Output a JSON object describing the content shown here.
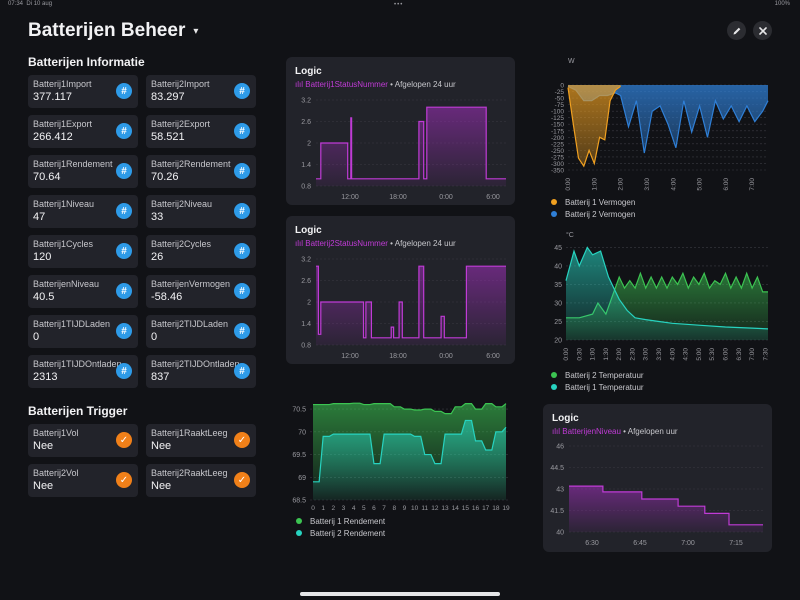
{
  "status_bar": {
    "time": "07:34",
    "date": "Di 10 aug",
    "dots": "•••",
    "battery": "100%"
  },
  "header": {
    "title": "Batterijen Beheer",
    "caret": "▾",
    "edit_icon": "pencil-icon",
    "close_icon": "close-icon"
  },
  "sections": {
    "info": "Batterijen Informatie",
    "trigger": "Batterijen Trigger"
  },
  "info_cards": [
    {
      "label": "Batterij1Import",
      "value": "377.117"
    },
    {
      "label": "Batterij2Import",
      "value": "83.297"
    },
    {
      "label": "Batterij1Export",
      "value": "266.412"
    },
    {
      "label": "Batterij2Export",
      "value": "58.521"
    },
    {
      "label": "Batterij1Rendement",
      "value": "70.64"
    },
    {
      "label": "Batterij2Rendement",
      "value": "70.26"
    },
    {
      "label": "Batterij1Niveau",
      "value": "47"
    },
    {
      "label": "Batterij2Niveau",
      "value": "33"
    },
    {
      "label": "Batterij1Cycles",
      "value": "120"
    },
    {
      "label": "Batterij2Cycles",
      "value": "26"
    },
    {
      "label": "BatterijenNiveau",
      "value": "40.5"
    },
    {
      "label": "BatterijenVermogen",
      "value": "-58.46"
    },
    {
      "label": "Batterij1TIJDLaden",
      "value": "0"
    },
    {
      "label": "Batterij2TIJDLaden",
      "value": "0"
    },
    {
      "label": "Batterij1TIJDOntladen",
      "value": "2313"
    },
    {
      "label": "Batterij2TIJDOntladen",
      "value": "837"
    }
  ],
  "hash_glyph": "#",
  "check_glyph": "✓",
  "trigger_cards": [
    {
      "label": "Batterij1Vol",
      "value": "Nee"
    },
    {
      "label": "Batterij1RaaktLeeg",
      "value": "Nee"
    },
    {
      "label": "Batterij2Vol",
      "value": "Nee"
    },
    {
      "label": "Batterij2RaaktLeeg",
      "value": "Nee"
    }
  ],
  "logic_panels": [
    {
      "title": "Logic",
      "entity": "Batterij1StatusNummer",
      "period": " • Afgelopen 24 uur",
      "signal_icon": "signal-bars-icon"
    },
    {
      "title": "Logic",
      "entity": "Batterij2StatusNummer",
      "period": " • Afgelopen 24 uur",
      "signal_icon": "signal-bars-icon"
    },
    {
      "title": "Logic",
      "entity": "BatterijenNiveau",
      "period": " • Afgelopen uur",
      "signal_icon": "signal-bars-icon"
    }
  ],
  "colors": {
    "purple": "#a12fbd",
    "green": "#3cc452",
    "teal": "#27d3c0",
    "orange": "#f0a020",
    "blue": "#2f7fd6",
    "accent_blue": "#2e9be8",
    "accent_orange": "#f08019"
  },
  "chart_data": [
    {
      "id": "status1",
      "type": "line",
      "ylim": [
        0.8,
        3.2
      ],
      "yticks": [
        "3.2",
        "2.6",
        "2",
        "1.4",
        "0.8"
      ],
      "xticks": [
        "12:00",
        "18:00",
        "0:00",
        "6:00"
      ],
      "series": [
        {
          "x_hours": [
            0,
            0.6,
            0.6,
            4.0,
            4.0,
            4.4,
            4.4,
            4.5,
            4.5,
            13.0,
            13.0,
            13.6,
            13.6,
            14.0,
            14.0,
            21.5,
            21.5,
            24
          ],
          "values": [
            1.0,
            1.0,
            2.0,
            2.0,
            1.0,
            1.0,
            2.7,
            2.7,
            1.0,
            1.0,
            2.6,
            2.6,
            1.0,
            1.0,
            3.0,
            3.0,
            1.0,
            1.0
          ]
        }
      ]
    },
    {
      "id": "status2",
      "type": "line",
      "ylim": [
        0.8,
        3.2
      ],
      "yticks": [
        "3.2",
        "2.6",
        "2",
        "1.4",
        "0.8"
      ],
      "xticks": [
        "12:00",
        "18:00",
        "0:00",
        "6:00"
      ],
      "series": [
        {
          "x_hours": [
            0,
            0.3,
            0.3,
            0.6,
            0.6,
            1.5,
            1.5,
            6.0,
            6.0,
            6.3,
            6.3,
            7.0,
            7.0,
            9.5,
            9.5,
            9.8,
            9.8,
            10.5,
            10.5,
            10.9,
            10.9,
            13.0,
            13.0,
            13.6,
            13.6,
            14.8,
            14.8,
            15.8,
            15.8,
            16.2,
            16.2,
            19.0,
            19.0,
            24
          ],
          "values": [
            3.0,
            3.0,
            1.1,
            1.1,
            2.0,
            2.0,
            2.0,
            2.0,
            1.0,
            1.0,
            2.0,
            2.0,
            1.0,
            1.0,
            1.3,
            1.3,
            1.0,
            1.0,
            2.0,
            2.0,
            1.0,
            1.0,
            3.0,
            3.0,
            1.0,
            1.0,
            1.0,
            1.0,
            1.6,
            1.6,
            1.0,
            1.0,
            3.0,
            3.0
          ]
        }
      ]
    },
    {
      "id": "rendement",
      "type": "line",
      "ylim": [
        68.5,
        70.7
      ],
      "yticks": [
        "70.5",
        "70",
        "69.5",
        "69",
        "68.5"
      ],
      "xticks": [
        "0",
        "1",
        "2",
        "3",
        "4",
        "5",
        "6",
        "7",
        "8",
        "9",
        "10",
        "11",
        "12",
        "13",
        "14",
        "15",
        "16",
        "17",
        "18",
        "19"
      ],
      "legend": [
        "Batterij 1 Rendement",
        "Batterij 2 Rendement"
      ],
      "series": [
        {
          "name": "Batterij 1 Rendement",
          "values": [
            70.6,
            70.6,
            70.62,
            70.62,
            70.63,
            70.6,
            70.62,
            70.62,
            70.55,
            70.5,
            70.48,
            70.5,
            70.45,
            70.4,
            70.55,
            70.62,
            70.5,
            70.62,
            70.55,
            70.62
          ]
        },
        {
          "name": "Batterij 2 Rendement",
          "values": [
            68.9,
            69.9,
            69.95,
            69.95,
            69.95,
            69.95,
            69.3,
            69.95,
            69.95,
            69.95,
            69.9,
            69.5,
            69.3,
            69.95,
            69.95,
            70.25,
            69.8,
            69.6,
            70.0,
            70.1
          ]
        }
      ]
    },
    {
      "id": "vermogen",
      "type": "area",
      "ylabel": "W",
      "ylim": [
        -350,
        0
      ],
      "yticks": [
        "0",
        "-25",
        "-50",
        "-75",
        "-100",
        "-125",
        "-150",
        "-175",
        "-200",
        "-225",
        "-250",
        "-275",
        "-300",
        "-350"
      ],
      "xticks": [
        "0:00",
        "1:00",
        "2:00",
        "3:00",
        "4:00",
        "5:00",
        "6:00",
        "7:00"
      ],
      "legend": [
        "Batterij 1 Vermogen",
        "Batterij 2 Vermogen"
      ],
      "series": [
        {
          "name": "Batterij 1 Vermogen",
          "x_hours": [
            0,
            0.2,
            0.4,
            0.6,
            0.8,
            1.0,
            1.2,
            1.4,
            1.6,
            1.8,
            2.0
          ],
          "values": [
            -10,
            -150,
            -280,
            -320,
            -250,
            -300,
            -200,
            -210,
            -60,
            -20,
            -5
          ]
        },
        {
          "name": "Batterij 2 Vermogen",
          "x_hours": [
            0,
            0.3,
            0.6,
            0.9,
            1.2,
            1.5,
            1.8,
            2.0,
            2.3,
            2.6,
            2.9,
            3.2,
            3.5,
            3.8,
            4.1,
            4.4,
            4.7,
            5.0,
            5.3,
            5.6,
            5.9,
            6.2,
            6.5,
            6.8,
            7.1,
            7.4,
            7.6
          ],
          "values": [
            -5,
            -20,
            -60,
            -60,
            -40,
            -40,
            -30,
            -40,
            -160,
            -60,
            -260,
            -100,
            -80,
            -150,
            -240,
            -60,
            -180,
            -80,
            -200,
            -60,
            -130,
            -80,
            -140,
            -80,
            -140,
            -100,
            -60
          ]
        }
      ]
    },
    {
      "id": "temperatuur",
      "type": "line",
      "ylabel": "°C",
      "ylim": [
        20,
        47
      ],
      "yticks": [
        "45",
        "40",
        "35",
        "30",
        "25",
        "20"
      ],
      "xticks": [
        "0:00",
        "0:30",
        "1:00",
        "1:30",
        "2:00",
        "2:30",
        "3:00",
        "3:30",
        "4:00",
        "4:30",
        "5:00",
        "5:30",
        "6:00",
        "6:30",
        "7:00",
        "7:30"
      ],
      "legend": [
        "Batterij 2 Temperatuur",
        "Batterij 1 Temperatuur"
      ],
      "series": [
        {
          "name": "Batterij 2 Temperatuur",
          "x_hours": [
            0,
            0.5,
            1.0,
            1.2,
            1.5,
            1.7,
            2.0,
            2.2,
            2.4,
            2.6,
            2.8,
            3.0,
            3.2,
            3.4,
            3.6,
            3.8,
            4.0,
            4.2,
            4.4,
            4.6,
            4.8,
            5.0,
            5.2,
            5.4,
            5.6,
            5.8,
            6.0,
            6.2,
            6.4,
            6.6,
            6.8,
            7.0,
            7.2,
            7.4,
            7.6
          ],
          "values": [
            26,
            26,
            27,
            30,
            27,
            31,
            37,
            34,
            36,
            34,
            38,
            34,
            37,
            34,
            37,
            34,
            37,
            35,
            38,
            34,
            37,
            35,
            38,
            34,
            36,
            35,
            38,
            34,
            37,
            34,
            38,
            34,
            37,
            33,
            33
          ]
        },
        {
          "name": "Batterij 1 Temperatuur",
          "x_hours": [
            0,
            0.3,
            0.5,
            0.8,
            1.0,
            1.3,
            1.6,
            1.8,
            2.0,
            2.3,
            2.6,
            3.0,
            3.5,
            4.0,
            5.0,
            6.0,
            7.0,
            7.6
          ],
          "values": [
            36,
            44,
            40,
            45,
            43,
            44,
            37,
            34,
            31,
            28,
            26,
            25.5,
            25,
            24.5,
            24,
            23.5,
            23.2,
            23
          ]
        }
      ]
    },
    {
      "id": "niveau",
      "type": "line",
      "ylim": [
        40,
        46
      ],
      "yticks": [
        "46",
        "44.5",
        "43",
        "41.5",
        "40"
      ],
      "xticks": [
        "6:30",
        "6:45",
        "7:00",
        "7:15"
      ],
      "series": [
        {
          "x_minutes": [
            0,
            14,
            14,
            30,
            30,
            45,
            45,
            56,
            56,
            66,
            66,
            80
          ],
          "values": [
            43.2,
            43.2,
            42.8,
            42.8,
            42.3,
            42.3,
            41.8,
            41.8,
            41.3,
            41.3,
            40.5,
            40.5
          ]
        }
      ]
    }
  ]
}
